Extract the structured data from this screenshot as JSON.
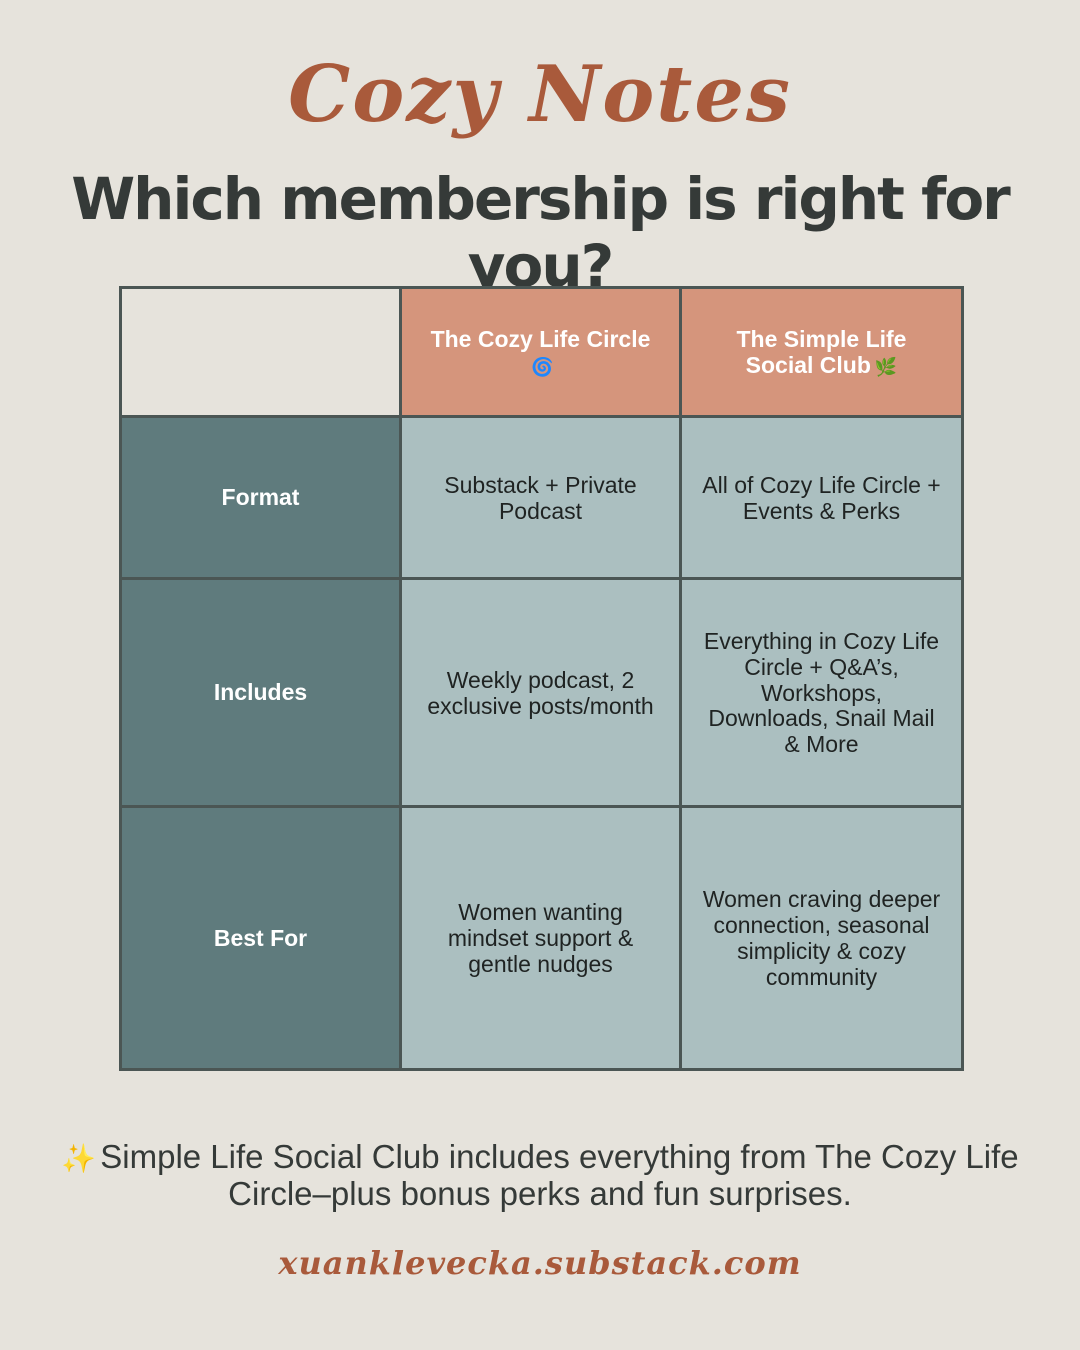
{
  "header": {
    "brand": "Cozy Notes",
    "headline": "Which membership is right for you?"
  },
  "plans": [
    {
      "name": "The Cozy Life Circle",
      "emoji": "🌀"
    },
    {
      "name": "The Simple Life Social Club",
      "emoji": "🌿"
    }
  ],
  "rows": [
    {
      "label": "Format",
      "values": [
        "Substack + Private Podcast",
        "All of Cozy Life Circle + Events & Perks"
      ]
    },
    {
      "label": "Includes",
      "values": [
        "Weekly podcast, 2 exclusive posts/month",
        "Everything in Cozy Life Circle + Q&A’s, Workshops, Downloads, Snail Mail & More"
      ]
    },
    {
      "label": "Best For",
      "values": [
        "Women wanting mindset support & gentle nudges",
        "Women craving deeper connection, seasonal simplicity & cozy community"
      ]
    }
  ],
  "footer": {
    "sparkle": "✨",
    "note": "Simple Life Social Club includes everything from The Cozy Life Circle–plus bonus perks and fun surprises.",
    "url": "xuanklevecka.substack.com"
  },
  "colors": {
    "background": "#e6e3dc",
    "accent": "#a95a3b",
    "header_cell": "#d5957c",
    "label_cell": "#5f7b7d",
    "value_cell": "#abbfc0",
    "grid_border": "#4b5654",
    "text_dark": "#353a38"
  }
}
